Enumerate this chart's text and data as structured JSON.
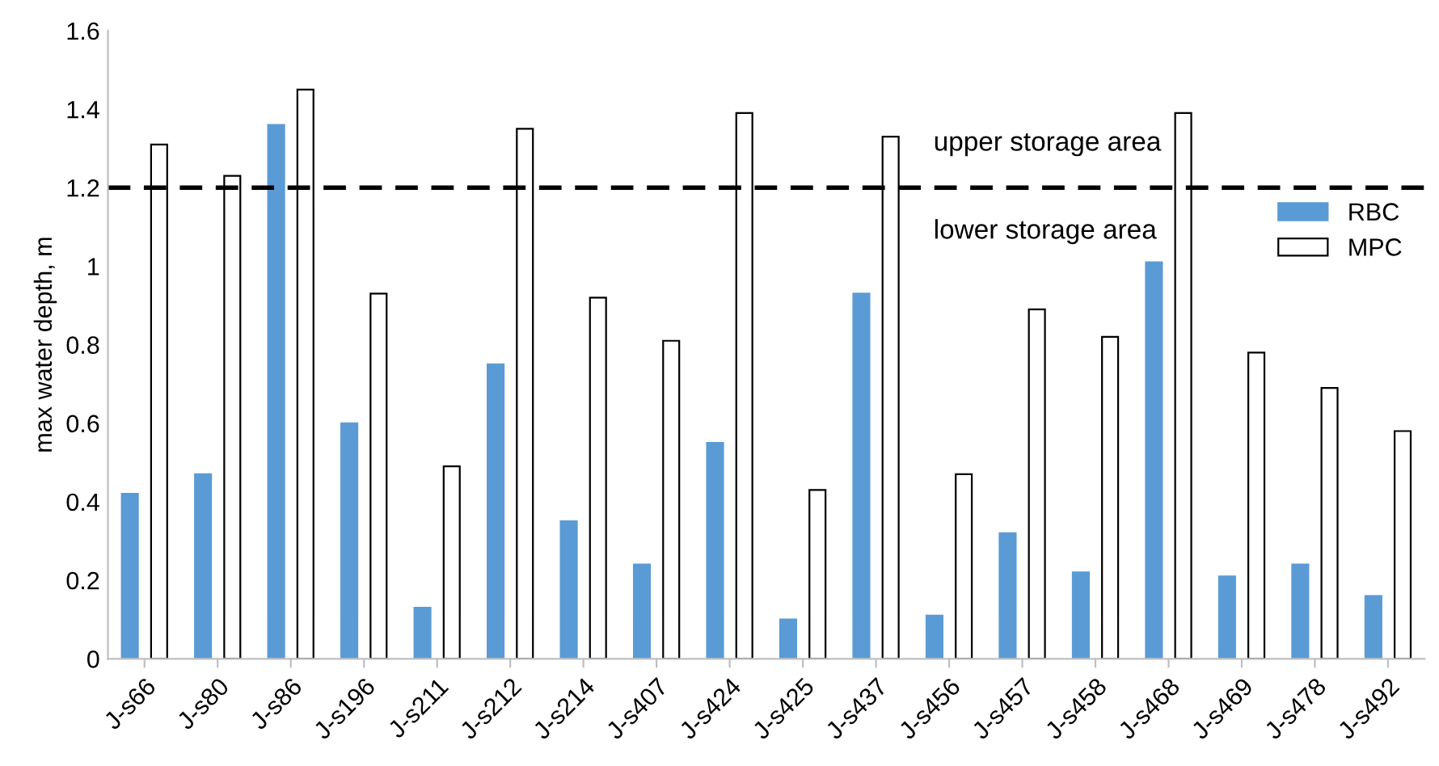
{
  "chart_data": {
    "type": "bar",
    "ylabel": "max water depth, m",
    "categories": [
      "J-s66",
      "J-s80",
      "J-s86",
      "J-s196",
      "J-s211",
      "J-s212",
      "J-s214",
      "J-s407",
      "J-s424",
      "J-s425",
      "J-s437",
      "J-s456",
      "J-s457",
      "J-s458",
      "J-s468",
      "J-s469",
      "J-s478",
      "J-s492"
    ],
    "series": [
      {
        "name": "RBC",
        "color": "#5b9bd5",
        "values": [
          0.42,
          0.47,
          1.36,
          0.6,
          0.13,
          0.75,
          0.35,
          0.24,
          0.55,
          0.1,
          0.93,
          0.11,
          0.32,
          0.22,
          1.01,
          0.21,
          0.24,
          0.16
        ]
      },
      {
        "name": "MPC",
        "color": "#ffffff",
        "values": [
          1.31,
          1.23,
          1.45,
          0.93,
          0.49,
          1.35,
          0.92,
          0.81,
          1.39,
          0.43,
          1.33,
          0.47,
          0.89,
          0.82,
          1.39,
          0.78,
          0.69,
          0.58
        ]
      }
    ],
    "ylim": [
      0,
      1.6
    ],
    "yticks": [
      0,
      0.2,
      0.4,
      0.6,
      0.8,
      1,
      1.2,
      1.4,
      1.6
    ],
    "ref_lines": [
      {
        "axis": "y",
        "value": 1.2,
        "color": "#000000",
        "line_style": "dashed"
      }
    ],
    "annotations": [
      "upper storage area",
      "lower storage area"
    ],
    "grid": false,
    "legend": "right"
  }
}
